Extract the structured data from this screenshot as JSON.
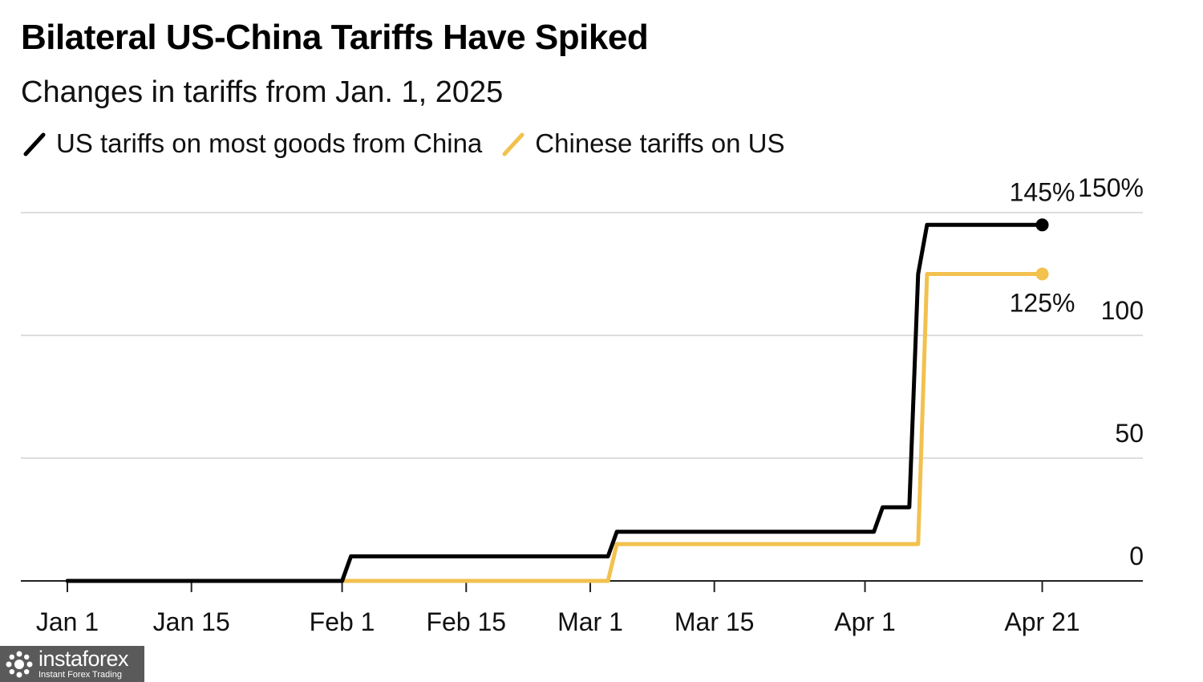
{
  "chart_data": {
    "type": "line",
    "title": "Bilateral US-China Tariffs Have Spiked",
    "subtitle": "Changes in tariffs from Jan. 1, 2025",
    "xlabel": "",
    "ylabel": "",
    "x_tick_labels": [
      "Jan 1",
      "Jan 15",
      "Feb 1",
      "Feb 15",
      "Mar 1",
      "Mar 15",
      "Apr 1",
      "Apr 21"
    ],
    "x_tick_dates": [
      "2025-01-01",
      "2025-01-15",
      "2025-02-01",
      "2025-02-15",
      "2025-03-01",
      "2025-03-15",
      "2025-04-01",
      "2025-04-21"
    ],
    "x_year_label": "2025",
    "xlim": [
      "2025-01-01",
      "2025-04-30"
    ],
    "y_ticks": [
      0,
      50,
      100,
      150
    ],
    "y_tick_labels": [
      "0",
      "50",
      "100",
      "150%"
    ],
    "ylim": [
      0,
      150
    ],
    "grid": true,
    "legend_position": "top-left",
    "series": [
      {
        "name": "US tariffs on most goods from China",
        "color": "#000000",
        "end_label": "145%",
        "points": [
          [
            "2025-01-01",
            0
          ],
          [
            "2025-02-01",
            0
          ],
          [
            "2025-02-02",
            10
          ],
          [
            "2025-03-03",
            10
          ],
          [
            "2025-03-04",
            20
          ],
          [
            "2025-04-02",
            20
          ],
          [
            "2025-04-03",
            30
          ],
          [
            "2025-04-06",
            30
          ],
          [
            "2025-04-07",
            125
          ],
          [
            "2025-04-08",
            145
          ],
          [
            "2025-04-21",
            145
          ]
        ]
      },
      {
        "name": "Chinese tariffs on US",
        "color": "#f2c14e",
        "end_label": "125%",
        "points": [
          [
            "2025-01-01",
            0
          ],
          [
            "2025-03-03",
            0
          ],
          [
            "2025-03-04",
            15
          ],
          [
            "2025-04-07",
            15
          ],
          [
            "2025-04-08",
            125
          ],
          [
            "2025-04-21",
            125
          ]
        ]
      }
    ]
  },
  "watermark": {
    "brand": "instaforex",
    "tagline": "Instant Forex Trading"
  }
}
